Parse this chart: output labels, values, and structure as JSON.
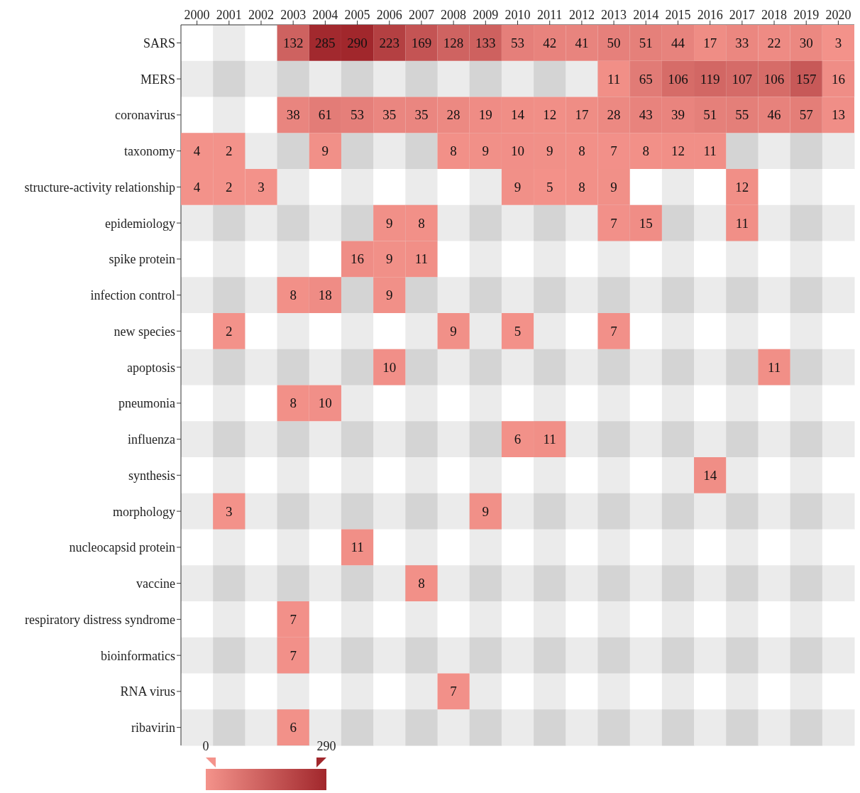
{
  "chart_data": {
    "type": "heatmap",
    "categories": [
      "2000",
      "2001",
      "2002",
      "2003",
      "2004",
      "2005",
      "2006",
      "2007",
      "2008",
      "2009",
      "2010",
      "2011",
      "2012",
      "2013",
      "2014",
      "2015",
      "2016",
      "2017",
      "2018",
      "2019",
      "2020"
    ],
    "y_categories": [
      "SARS",
      "MERS",
      "coronavirus",
      "taxonomy",
      "structure-activity relationship",
      "epidemiology",
      "spike protein",
      "infection control",
      "new species",
      "apoptosis",
      "pneumonia",
      "influenza",
      "synthesis",
      "morphology",
      "nucleocapsid protein",
      "vaccine",
      "respiratory distress syndrome",
      "bioinformatics",
      "RNA virus",
      "ribavirin"
    ],
    "cells": [
      [
        null,
        null,
        null,
        132,
        285,
        290,
        223,
        169,
        128,
        133,
        53,
        42,
        41,
        50,
        51,
        44,
        17,
        33,
        22,
        30,
        3
      ],
      [
        null,
        null,
        null,
        null,
        null,
        null,
        null,
        null,
        null,
        null,
        null,
        null,
        null,
        11,
        65,
        106,
        119,
        107,
        106,
        157,
        16
      ],
      [
        null,
        null,
        null,
        38,
        61,
        53,
        35,
        35,
        28,
        19,
        14,
        12,
        17,
        28,
        43,
        39,
        51,
        55,
        46,
        57,
        13
      ],
      [
        4,
        2,
        null,
        null,
        9,
        null,
        null,
        null,
        8,
        9,
        10,
        9,
        8,
        7,
        8,
        12,
        11,
        null,
        null,
        null,
        null
      ],
      [
        4,
        2,
        3,
        null,
        null,
        null,
        null,
        null,
        null,
        null,
        9,
        5,
        8,
        9,
        null,
        null,
        null,
        12,
        null,
        null,
        null
      ],
      [
        null,
        null,
        null,
        null,
        null,
        null,
        9,
        8,
        null,
        null,
        null,
        null,
        null,
        7,
        15,
        null,
        null,
        11,
        null,
        null,
        null
      ],
      [
        null,
        null,
        null,
        null,
        null,
        16,
        9,
        11,
        null,
        null,
        null,
        null,
        null,
        null,
        null,
        null,
        null,
        null,
        null,
        null,
        null
      ],
      [
        null,
        null,
        null,
        8,
        18,
        null,
        9,
        null,
        null,
        null,
        null,
        null,
        null,
        null,
        null,
        null,
        null,
        null,
        null,
        null,
        null
      ],
      [
        null,
        2,
        null,
        null,
        null,
        null,
        null,
        null,
        9,
        null,
        5,
        null,
        null,
        7,
        null,
        null,
        null,
        null,
        null,
        null,
        null
      ],
      [
        null,
        null,
        null,
        null,
        null,
        null,
        10,
        null,
        null,
        null,
        null,
        null,
        null,
        null,
        null,
        null,
        null,
        null,
        11,
        null,
        null
      ],
      [
        null,
        null,
        null,
        8,
        10,
        null,
        null,
        null,
        null,
        null,
        null,
        null,
        null,
        null,
        null,
        null,
        null,
        null,
        null,
        null,
        null
      ],
      [
        null,
        null,
        null,
        null,
        null,
        null,
        null,
        null,
        null,
        null,
        6,
        11,
        null,
        null,
        null,
        null,
        null,
        null,
        null,
        null,
        null
      ],
      [
        null,
        null,
        null,
        null,
        null,
        null,
        null,
        null,
        null,
        null,
        null,
        null,
        null,
        null,
        null,
        null,
        14,
        null,
        null,
        null,
        null
      ],
      [
        null,
        3,
        null,
        null,
        null,
        null,
        null,
        null,
        null,
        9,
        null,
        null,
        null,
        null,
        null,
        null,
        null,
        null,
        null,
        null,
        null
      ],
      [
        null,
        null,
        null,
        null,
        null,
        11,
        null,
        null,
        null,
        null,
        null,
        null,
        null,
        null,
        null,
        null,
        null,
        null,
        null,
        null,
        null
      ],
      [
        null,
        null,
        null,
        null,
        null,
        null,
        null,
        8,
        null,
        null,
        null,
        null,
        null,
        null,
        null,
        null,
        null,
        null,
        null,
        null,
        null
      ],
      [
        null,
        null,
        null,
        7,
        null,
        null,
        null,
        null,
        null,
        null,
        null,
        null,
        null,
        null,
        null,
        null,
        null,
        null,
        null,
        null,
        null
      ],
      [
        null,
        null,
        null,
        7,
        null,
        null,
        null,
        null,
        null,
        null,
        null,
        null,
        null,
        null,
        null,
        null,
        null,
        null,
        null,
        null,
        null
      ],
      [
        null,
        null,
        null,
        null,
        null,
        null,
        null,
        null,
        7,
        null,
        null,
        null,
        null,
        null,
        null,
        null,
        null,
        null,
        null,
        null,
        null
      ],
      [
        null,
        null,
        null,
        6,
        null,
        null,
        null,
        null,
        null,
        null,
        null,
        null,
        null,
        null,
        null,
        null,
        null,
        null,
        null,
        null,
        null
      ]
    ],
    "clim": [
      0,
      290
    ],
    "cticks": [
      0,
      290
    ],
    "data_labels": true
  }
}
